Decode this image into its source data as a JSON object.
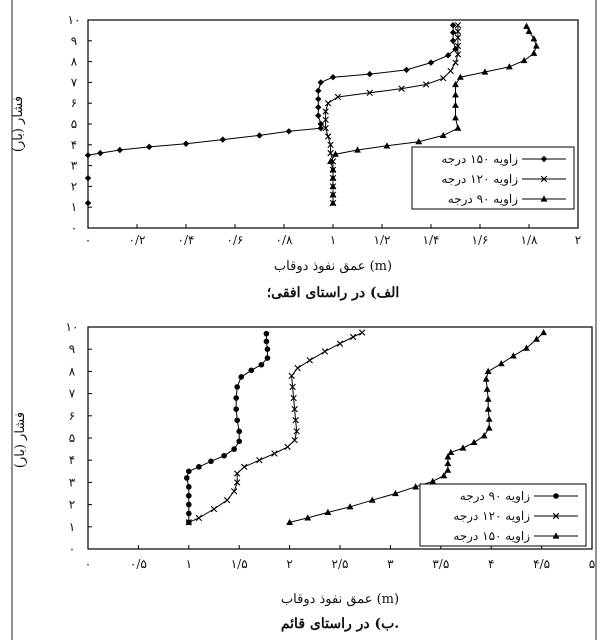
{
  "charts": {
    "top": {
      "caption": "الف) در راستای افقی؛",
      "xlabel": "عمق نفوذ دوقاب (m)",
      "ylabel": "فشار (بار)",
      "xticks": [
        "۰",
        "۰/۲",
        "۰/۴",
        "۰/۶",
        "۰/۸",
        "۱",
        "۱/۲",
        "۱/۴",
        "۱/۶",
        "۱/۸",
        "۲"
      ],
      "yticks": [
        "۰",
        "۱",
        "۲",
        "۳",
        "۴",
        "۵",
        "۶",
        "۷",
        "۸",
        "۹",
        "۱۰"
      ],
      "legend": [
        "زاویه ۱۵۰ درجه",
        "زاویه ۱۲۰ درجه",
        "زاویه ۹۰ درجه"
      ]
    },
    "bottom": {
      "caption": "ب) در راستای قائم.",
      "xlabel": "عمق نفوذ دوقاب (m)",
      "ylabel": "فشار (بار)",
      "xticks": [
        "۰",
        "۰/۵",
        "۱",
        "۱/۵",
        "۲",
        "۲/۵",
        "۳",
        "۳/۵",
        "۴",
        "۴/۵",
        "۵"
      ],
      "yticks": [
        "۰",
        "۱",
        "۲",
        "۳",
        "۴",
        "۵",
        "۶",
        "۷",
        "۸",
        "۹",
        "۱۰"
      ],
      "legend": [
        "زاویه ۹۰ درجه",
        "زاویه ۱۲۰ درجه",
        "زاویه ۱۵۰ درجه"
      ]
    }
  },
  "chart_data": [
    {
      "type": "line",
      "xlim": [
        0,
        2
      ],
      "ylim": [
        0,
        10
      ],
      "grid": false,
      "legend_position": "bottom-right",
      "series": [
        {
          "name": "زاویه ۱۵۰ درجه",
          "marker": "diamond",
          "points": [
            [
              0,
              1.2
            ],
            [
              0,
              2.4
            ],
            [
              0,
              3.5
            ],
            [
              0.05,
              3.6
            ],
            [
              0.13,
              3.75
            ],
            [
              0.25,
              3.9
            ],
            [
              0.4,
              4.05
            ],
            [
              0.55,
              4.25
            ],
            [
              0.7,
              4.45
            ],
            [
              0.82,
              4.65
            ],
            [
              0.95,
              4.8
            ],
            [
              0.95,
              5.0
            ],
            [
              0.94,
              5.4
            ],
            [
              0.94,
              5.8
            ],
            [
              0.94,
              6.2
            ],
            [
              0.94,
              6.6
            ],
            [
              0.95,
              7.0
            ],
            [
              1.0,
              7.25
            ],
            [
              1.15,
              7.4
            ],
            [
              1.3,
              7.6
            ],
            [
              1.4,
              7.95
            ],
            [
              1.47,
              8.3
            ],
            [
              1.5,
              8.6
            ],
            [
              1.49,
              9.0
            ],
            [
              1.49,
              9.4
            ],
            [
              1.49,
              9.75
            ]
          ]
        },
        {
          "name": "زاویه ۱۲۰ درجه",
          "marker": "x",
          "points": [
            [
              1.0,
              1.2
            ],
            [
              1.0,
              1.6
            ],
            [
              1.0,
              2.0
            ],
            [
              1.0,
              2.4
            ],
            [
              1.0,
              2.8
            ],
            [
              1.0,
              3.2
            ],
            [
              0.99,
              3.6
            ],
            [
              0.99,
              4.0
            ],
            [
              0.98,
              4.4
            ],
            [
              0.97,
              4.8
            ],
            [
              0.97,
              5.2
            ],
            [
              0.97,
              5.6
            ],
            [
              0.98,
              6.0
            ],
            [
              1.02,
              6.3
            ],
            [
              1.15,
              6.5
            ],
            [
              1.28,
              6.7
            ],
            [
              1.38,
              6.9
            ],
            [
              1.45,
              7.2
            ],
            [
              1.48,
              7.55
            ],
            [
              1.5,
              7.95
            ],
            [
              1.51,
              8.35
            ],
            [
              1.51,
              8.75
            ],
            [
              1.51,
              9.15
            ],
            [
              1.51,
              9.45
            ],
            [
              1.51,
              9.75
            ]
          ]
        },
        {
          "name": "زاویه ۹۰ درجه",
          "marker": "triangle",
          "points": [
            [
              1.0,
              1.2
            ],
            [
              1.0,
              1.6
            ],
            [
              1.0,
              2.0
            ],
            [
              1.0,
              2.4
            ],
            [
              1.0,
              2.8
            ],
            [
              0.99,
              3.2
            ],
            [
              1.01,
              3.55
            ],
            [
              1.1,
              3.75
            ],
            [
              1.22,
              3.95
            ],
            [
              1.35,
              4.15
            ],
            [
              1.45,
              4.45
            ],
            [
              1.51,
              4.8
            ],
            [
              1.5,
              5.3
            ],
            [
              1.5,
              5.9
            ],
            [
              1.5,
              6.4
            ],
            [
              1.5,
              6.9
            ],
            [
              1.52,
              7.25
            ],
            [
              1.62,
              7.5
            ],
            [
              1.72,
              7.75
            ],
            [
              1.78,
              8.05
            ],
            [
              1.82,
              8.4
            ],
            [
              1.83,
              8.75
            ],
            [
              1.82,
              9.1
            ],
            [
              1.8,
              9.45
            ],
            [
              1.79,
              9.7
            ]
          ]
        }
      ]
    },
    {
      "type": "line",
      "xlim": [
        0,
        5
      ],
      "ylim": [
        0,
        10
      ],
      "grid": false,
      "legend_position": "bottom-right",
      "series": [
        {
          "name": "زاویه ۹۰ درجه",
          "marker": "circle",
          "points": [
            [
              1.0,
              1.2
            ],
            [
              1.0,
              1.6
            ],
            [
              1.0,
              2.0
            ],
            [
              1.0,
              2.4
            ],
            [
              1.0,
              2.8
            ],
            [
              0.98,
              3.2
            ],
            [
              1.0,
              3.5
            ],
            [
              1.1,
              3.7
            ],
            [
              1.22,
              3.95
            ],
            [
              1.35,
              4.2
            ],
            [
              1.45,
              4.5
            ],
            [
              1.5,
              4.85
            ],
            [
              1.5,
              5.3
            ],
            [
              1.48,
              5.8
            ],
            [
              1.47,
              6.3
            ],
            [
              1.47,
              6.8
            ],
            [
              1.48,
              7.3
            ],
            [
              1.52,
              7.75
            ],
            [
              1.62,
              8.05
            ],
            [
              1.72,
              8.3
            ],
            [
              1.78,
              8.6
            ],
            [
              1.78,
              9.0
            ],
            [
              1.77,
              9.35
            ],
            [
              1.77,
              9.7
            ]
          ]
        },
        {
          "name": "زاویه ۱۲۰ درجه",
          "marker": "x",
          "points": [
            [
              1.0,
              1.2
            ],
            [
              1.1,
              1.4
            ],
            [
              1.25,
              1.8
            ],
            [
              1.38,
              2.2
            ],
            [
              1.45,
              2.6
            ],
            [
              1.48,
              3.0
            ],
            [
              1.48,
              3.4
            ],
            [
              1.55,
              3.7
            ],
            [
              1.7,
              4.0
            ],
            [
              1.85,
              4.3
            ],
            [
              1.98,
              4.6
            ],
            [
              2.05,
              4.9
            ],
            [
              2.07,
              5.3
            ],
            [
              2.06,
              5.8
            ],
            [
              2.05,
              6.3
            ],
            [
              2.04,
              6.8
            ],
            [
              2.03,
              7.3
            ],
            [
              2.02,
              7.8
            ],
            [
              2.08,
              8.15
            ],
            [
              2.2,
              8.5
            ],
            [
              2.35,
              8.9
            ],
            [
              2.5,
              9.25
            ],
            [
              2.63,
              9.55
            ],
            [
              2.72,
              9.75
            ]
          ]
        },
        {
          "name": "زاویه ۱۵۰ درجه",
          "marker": "triangle",
          "points": [
            [
              2.0,
              1.2
            ],
            [
              2.18,
              1.4
            ],
            [
              2.38,
              1.65
            ],
            [
              2.6,
              1.9
            ],
            [
              2.82,
              2.2
            ],
            [
              3.05,
              2.5
            ],
            [
              3.25,
              2.8
            ],
            [
              3.42,
              3.05
            ],
            [
              3.53,
              3.3
            ],
            [
              3.57,
              3.55
            ],
            [
              3.57,
              3.85
            ],
            [
              3.57,
              4.15
            ],
            [
              3.6,
              4.35
            ],
            [
              3.72,
              4.55
            ],
            [
              3.83,
              4.8
            ],
            [
              3.93,
              5.1
            ],
            [
              3.98,
              5.45
            ],
            [
              3.98,
              5.85
            ],
            [
              3.97,
              6.3
            ],
            [
              3.97,
              6.75
            ],
            [
              3.96,
              7.2
            ],
            [
              3.95,
              7.65
            ],
            [
              3.97,
              8.0
            ],
            [
              4.1,
              8.35
            ],
            [
              4.22,
              8.7
            ],
            [
              4.35,
              9.05
            ],
            [
              4.45,
              9.45
            ],
            [
              4.52,
              9.75
            ]
          ]
        }
      ]
    }
  ]
}
